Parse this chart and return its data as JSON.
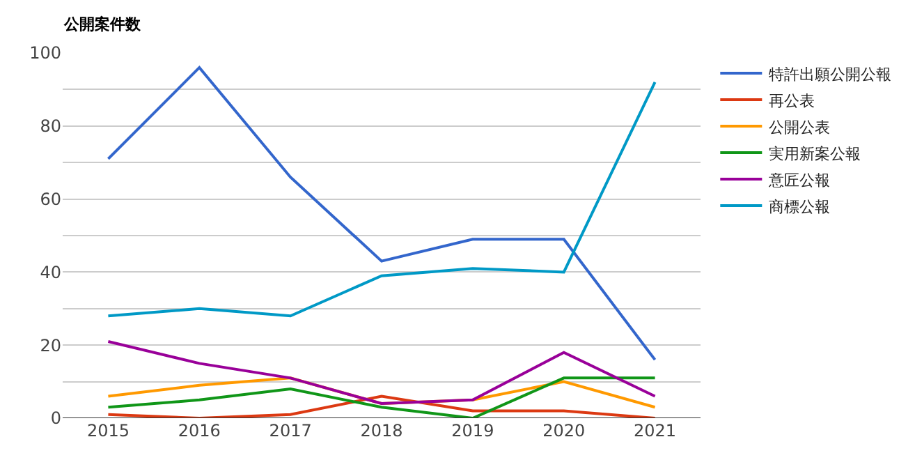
{
  "chart_data": {
    "type": "line",
    "title": "公開案件数",
    "categories": [
      "2015",
      "2016",
      "2017",
      "2018",
      "2019",
      "2020",
      "2021"
    ],
    "series": [
      {
        "name": "特許出願公開公報",
        "color": "#3366cc",
        "values": [
          71,
          96,
          66,
          43,
          49,
          49,
          16
        ]
      },
      {
        "name": "再公表",
        "color": "#dc3912",
        "values": [
          1,
          0,
          1,
          6,
          2,
          2,
          0
        ]
      },
      {
        "name": "公開公表",
        "color": "#ff9900",
        "values": [
          6,
          9,
          11,
          4,
          5,
          10,
          3
        ]
      },
      {
        "name": "実用新案公報",
        "color": "#109618",
        "values": [
          3,
          5,
          8,
          3,
          0,
          11,
          11
        ]
      },
      {
        "name": "意匠公報",
        "color": "#990099",
        "values": [
          21,
          15,
          11,
          4,
          5,
          18,
          6
        ]
      },
      {
        "name": "商標公報",
        "color": "#0099c6",
        "values": [
          28,
          30,
          28,
          39,
          41,
          40,
          92
        ]
      }
    ],
    "ylim": [
      0,
      100
    ],
    "yticks": [
      0,
      {
        "value": 10,
        "label": null
      },
      20,
      {
        "value": 30,
        "label": null
      },
      40,
      {
        "value": 50,
        "label": null
      },
      60,
      {
        "value": 70,
        "label": null
      },
      80,
      {
        "value": 90,
        "label": null
      },
      100
    ],
    "grid": "y",
    "legend": "right",
    "marker": "none",
    "line_style": "solid"
  }
}
